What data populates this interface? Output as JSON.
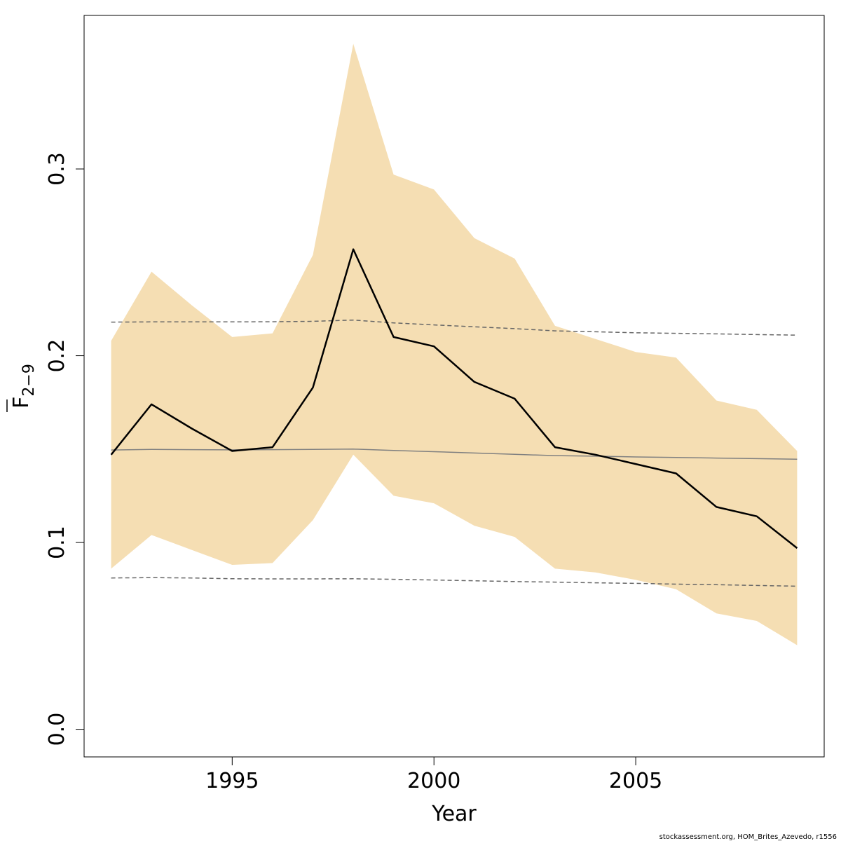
{
  "chart_data": {
    "type": "line",
    "xlabel": "Year",
    "ylabel": {
      "main": "F",
      "subscript": "2−9"
    },
    "xlim": [
      1991.33,
      2009.67
    ],
    "ylim": [
      -0.0148,
      0.3822
    ],
    "x_ticks": [
      1995,
      2000,
      2005
    ],
    "x_tick_labels": [
      "1995",
      "2000",
      "2005"
    ],
    "y_ticks": [
      0.0,
      0.1,
      0.2,
      0.3
    ],
    "y_tick_labels": [
      "0.0",
      "0.1",
      "0.2",
      "0.3"
    ],
    "grid": false,
    "x": [
      1992,
      1993,
      1994,
      1995,
      1996,
      1997,
      1998,
      1999,
      2000,
      2001,
      2002,
      2003,
      2004,
      2005,
      2006,
      2007,
      2008,
      2009
    ],
    "band": {
      "upper": [
        0.208,
        0.245,
        0.227,
        0.21,
        0.212,
        0.254,
        0.367,
        0.297,
        0.289,
        0.263,
        0.252,
        0.216,
        0.209,
        0.202,
        0.199,
        0.176,
        0.171,
        0.149
      ],
      "lower": [
        0.086,
        0.104,
        0.096,
        0.088,
        0.089,
        0.112,
        0.147,
        0.125,
        0.121,
        0.109,
        0.103,
        0.086,
        0.084,
        0.08,
        0.075,
        0.062,
        0.058,
        0.045
      ],
      "color": "#f5deb3"
    },
    "series": [
      {
        "values": [
          0.147,
          0.174,
          0.161,
          0.149,
          0.151,
          0.183,
          0.257,
          0.21,
          0.205,
          0.186,
          0.177,
          0.151,
          0.147,
          0.142,
          0.137,
          0.119,
          0.114,
          0.097
        ],
        "color": "#000000",
        "style": "solid"
      },
      {
        "values": [
          0.1495,
          0.1498,
          0.1497,
          0.1496,
          0.1497,
          0.1498,
          0.15,
          0.1493,
          0.1486,
          0.1479,
          0.1472,
          0.1465,
          0.1462,
          0.1458,
          0.1455,
          0.1452,
          0.1449,
          0.1446
        ],
        "color": "#808080",
        "style": "solid"
      },
      {
        "values": [
          0.218,
          0.2181,
          0.2181,
          0.2181,
          0.2182,
          0.2184,
          0.2191,
          0.2176,
          0.2165,
          0.2155,
          0.2145,
          0.2133,
          0.2128,
          0.2123,
          0.212,
          0.2117,
          0.2113,
          0.211
        ],
        "color": "#666666",
        "style": "dashed"
      },
      {
        "values": [
          0.081,
          0.0812,
          0.081,
          0.0806,
          0.0805,
          0.0805,
          0.0806,
          0.0803,
          0.0799,
          0.0795,
          0.0791,
          0.0788,
          0.0784,
          0.0781,
          0.0777,
          0.0774,
          0.077,
          0.0766
        ],
        "color": "#666666",
        "style": "dashed"
      }
    ]
  },
  "credit": "stockassessment.org, HOM_Brites_Azevedo, r1556"
}
